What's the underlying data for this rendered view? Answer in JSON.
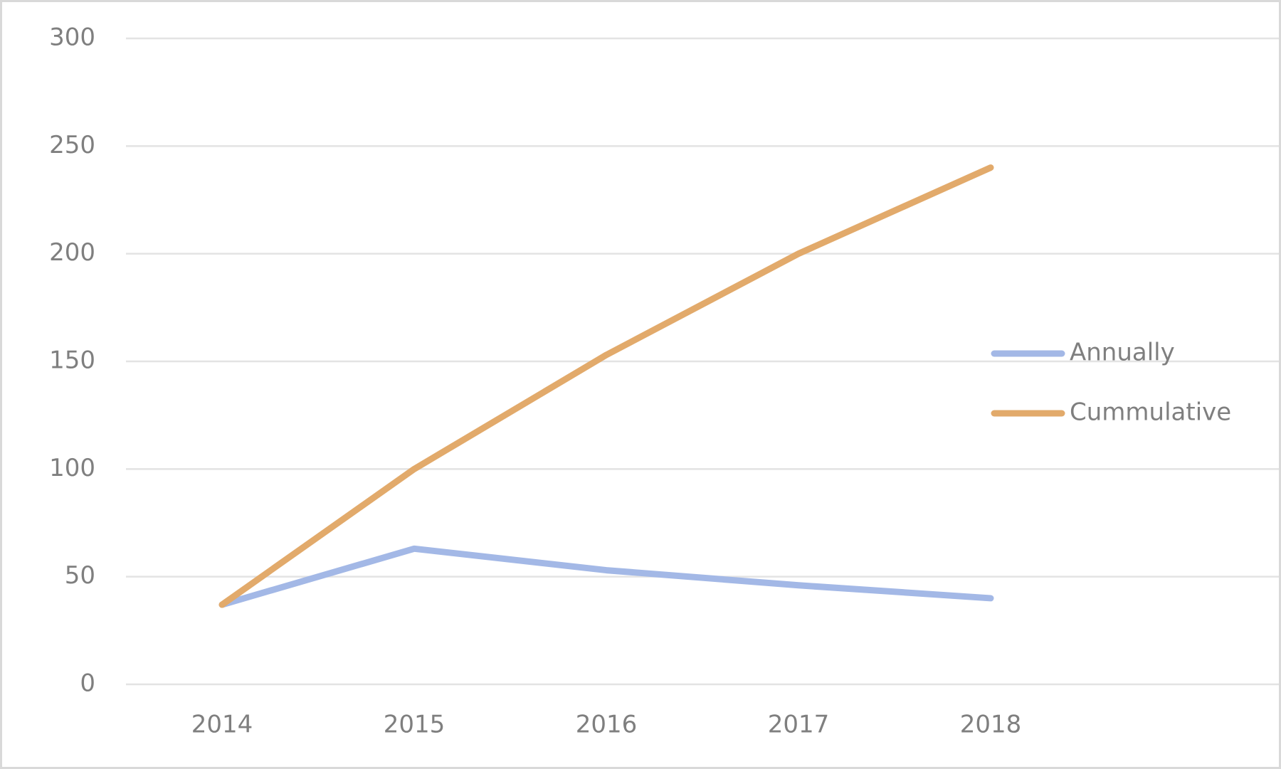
{
  "chart_data": {
    "type": "line",
    "categories": [
      "2014",
      "2015",
      "2016",
      "2017",
      "2018",
      null
    ],
    "series": [
      {
        "name": "Annually",
        "color": "#a3b8e6",
        "values": [
          37,
          63,
          53,
          46,
          40,
          null
        ]
      },
      {
        "name": "Cummulative",
        "color": "#e2aa6b",
        "values": [
          37,
          100,
          153,
          200,
          240,
          null
        ]
      }
    ],
    "ylim": [
      0,
      300
    ],
    "yticks": [
      0,
      50,
      100,
      150,
      200,
      250,
      300
    ],
    "grid": true,
    "legend": "right"
  }
}
